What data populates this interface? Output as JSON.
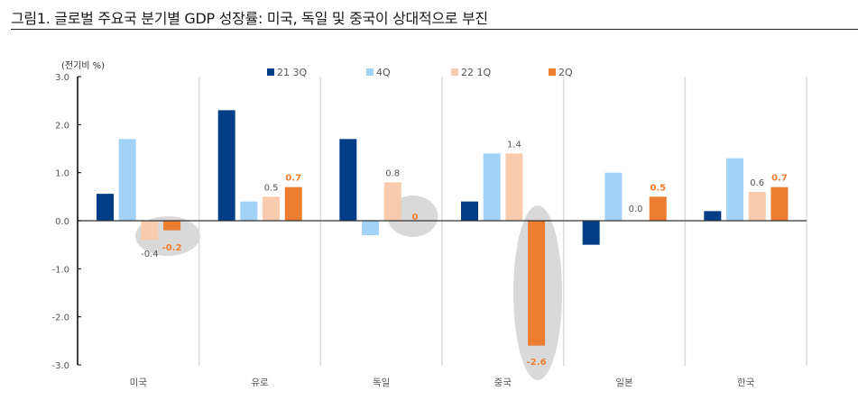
{
  "title": "그림1. 글로벌 주요국 분기별 GDP 성장률: 미국, 독일 및 중국이 상대적으로 부진",
  "chart_data": {
    "type": "bar",
    "title": "그림1. 글로벌 주요국 분기별 GDP 성장률: 미국, 독일 및 중국이 상대적으로 부진",
    "ylabel": "(전기비 %)",
    "xlabel": "",
    "ylim": [
      -3.0,
      3.0
    ],
    "yticks": [
      "3.0",
      "2.0",
      "1.0",
      "0.0",
      "-1.0",
      "-2.0",
      "-3.0"
    ],
    "ytick_values": [
      3,
      2,
      1,
      0,
      -1,
      -2,
      -3
    ],
    "legend_position": "top",
    "categories": [
      "미국",
      "유로",
      "독일",
      "중국",
      "일본",
      "한국"
    ],
    "series": [
      {
        "name": "21 3Q",
        "color": "#003F87",
        "values": [
          0.56,
          2.3,
          1.7,
          0.4,
          -0.5,
          0.2
        ]
      },
      {
        "name": "4Q",
        "color": "#A3D2F7",
        "values": [
          1.7,
          0.4,
          -0.3,
          1.4,
          1.0,
          1.3
        ]
      },
      {
        "name": "22 1Q",
        "color": "#F8CBAD",
        "values": [
          -0.4,
          0.5,
          0.8,
          1.4,
          0.0,
          0.6
        ]
      },
      {
        "name": "2Q",
        "color": "#ED7D31",
        "values": [
          -0.2,
          0.7,
          0.0,
          -2.6,
          0.5,
          0.7
        ]
      }
    ],
    "data_labels": [
      {
        "category": "미국",
        "series": "22 1Q",
        "text": "-0.4",
        "highlight": false
      },
      {
        "category": "미국",
        "series": "2Q",
        "text": "-0.2",
        "highlight": true
      },
      {
        "category": "유로",
        "series": "22 1Q",
        "text": "0.5",
        "highlight": false
      },
      {
        "category": "유로",
        "series": "2Q",
        "text": "0.7",
        "highlight": true
      },
      {
        "category": "독일",
        "series": "22 1Q",
        "text": "0.8",
        "highlight": false
      },
      {
        "category": "독일",
        "series": "2Q",
        "text": "0",
        "highlight": true
      },
      {
        "category": "중국",
        "series": "22 1Q",
        "text": "1.4",
        "highlight": false
      },
      {
        "category": "중국",
        "series": "2Q",
        "text": "-2.6",
        "highlight": true
      },
      {
        "category": "일본",
        "series": "22 1Q",
        "text": "0.0",
        "highlight": false
      },
      {
        "category": "일본",
        "series": "2Q",
        "text": "0.5",
        "highlight": true
      },
      {
        "category": "한국",
        "series": "22 1Q",
        "text": "0.6",
        "highlight": false
      },
      {
        "category": "한국",
        "series": "2Q",
        "text": "0.7",
        "highlight": true
      }
    ],
    "highlight_ellipses": [
      "미국",
      "독일",
      "중국"
    ],
    "grid": false
  }
}
